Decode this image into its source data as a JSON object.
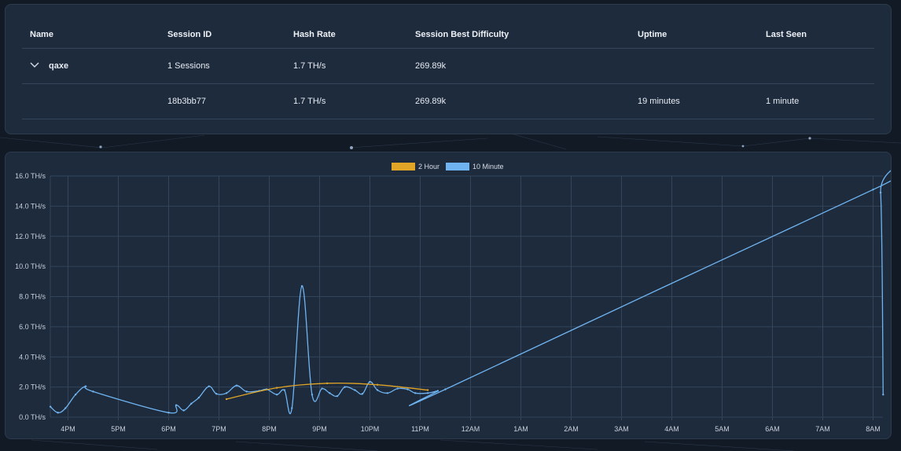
{
  "table": {
    "headers": [
      "Name",
      "Session ID",
      "Hash Rate",
      "Session Best Difficulty",
      "Uptime",
      "Last Seen"
    ],
    "group": {
      "name": "qaxe",
      "sessions": "1 Sessions",
      "hash_rate": "1.7 TH/s",
      "best_difficulty": "269.89k"
    },
    "session": {
      "id": "18b3bb77",
      "hash_rate": "1.7 TH/s",
      "best_difficulty": "269.89k",
      "uptime": "19 minutes",
      "last_seen": "1 minute"
    }
  },
  "colors": {
    "series_2h": "#e0a526",
    "series_10m": "#6fb4f0",
    "grid": "#33455b"
  },
  "chart_data": {
    "type": "line",
    "legend_position": "top-center",
    "grid": true,
    "x_ticks": [
      "4PM",
      "5PM",
      "6PM",
      "7PM",
      "8PM",
      "9PM",
      "10PM",
      "11PM",
      "12AM",
      "1AM",
      "2AM",
      "3AM",
      "4AM",
      "5AM",
      "6AM",
      "7AM",
      "8AM"
    ],
    "y_ticks": [
      "0.0 TH/s",
      "2.0 TH/s",
      "4.0 TH/s",
      "6.0 TH/s",
      "8.0 TH/s",
      "10.0 TH/s",
      "12.0 TH/s",
      "14.0 TH/s",
      "16.0 TH/s"
    ],
    "ylim": [
      0,
      16
    ],
    "x_unit": "hours since 4PM",
    "series": [
      {
        "name": "2 Hour",
        "color": "#e0a526",
        "points": [
          [
            3.15,
            1.2
          ],
          [
            4.15,
            1.95
          ],
          [
            5.15,
            2.25
          ],
          [
            6.15,
            2.15
          ],
          [
            7.15,
            1.8
          ]
        ]
      },
      {
        "name": "10 Minute",
        "color": "#6fb4f0",
        "points": [
          [
            -0.35,
            0.7
          ],
          [
            -0.2,
            0.3
          ],
          [
            -0.05,
            0.6
          ],
          [
            0.15,
            1.5
          ],
          [
            0.35,
            2.05
          ],
          [
            0.5,
            1.7
          ],
          [
            2.0,
            0.3
          ],
          [
            2.15,
            0.8
          ],
          [
            2.3,
            0.45
          ],
          [
            2.45,
            0.9
          ],
          [
            2.6,
            1.3
          ],
          [
            2.8,
            2.05
          ],
          [
            2.95,
            1.55
          ],
          [
            3.15,
            1.6
          ],
          [
            3.35,
            2.1
          ],
          [
            3.55,
            1.7
          ],
          [
            3.8,
            1.75
          ],
          [
            3.95,
            1.85
          ],
          [
            4.15,
            1.5
          ],
          [
            4.3,
            1.8
          ],
          [
            4.45,
            0.6
          ],
          [
            4.65,
            8.7
          ],
          [
            4.85,
            1.5
          ],
          [
            5.05,
            1.9
          ],
          [
            5.2,
            1.6
          ],
          [
            5.35,
            1.4
          ],
          [
            5.5,
            2.0
          ],
          [
            5.7,
            1.8
          ],
          [
            5.85,
            1.55
          ],
          [
            6.0,
            2.35
          ],
          [
            6.15,
            1.8
          ],
          [
            6.35,
            1.6
          ],
          [
            6.55,
            1.9
          ],
          [
            6.75,
            1.85
          ],
          [
            6.9,
            1.6
          ],
          [
            7.15,
            1.6
          ],
          [
            7.35,
            1.75
          ],
          [
            7.5,
            1.85
          ],
          [
            16.0,
            15.1
          ],
          [
            16.15,
            14.9
          ],
          [
            16.2,
            1.5
          ]
        ]
      }
    ]
  }
}
